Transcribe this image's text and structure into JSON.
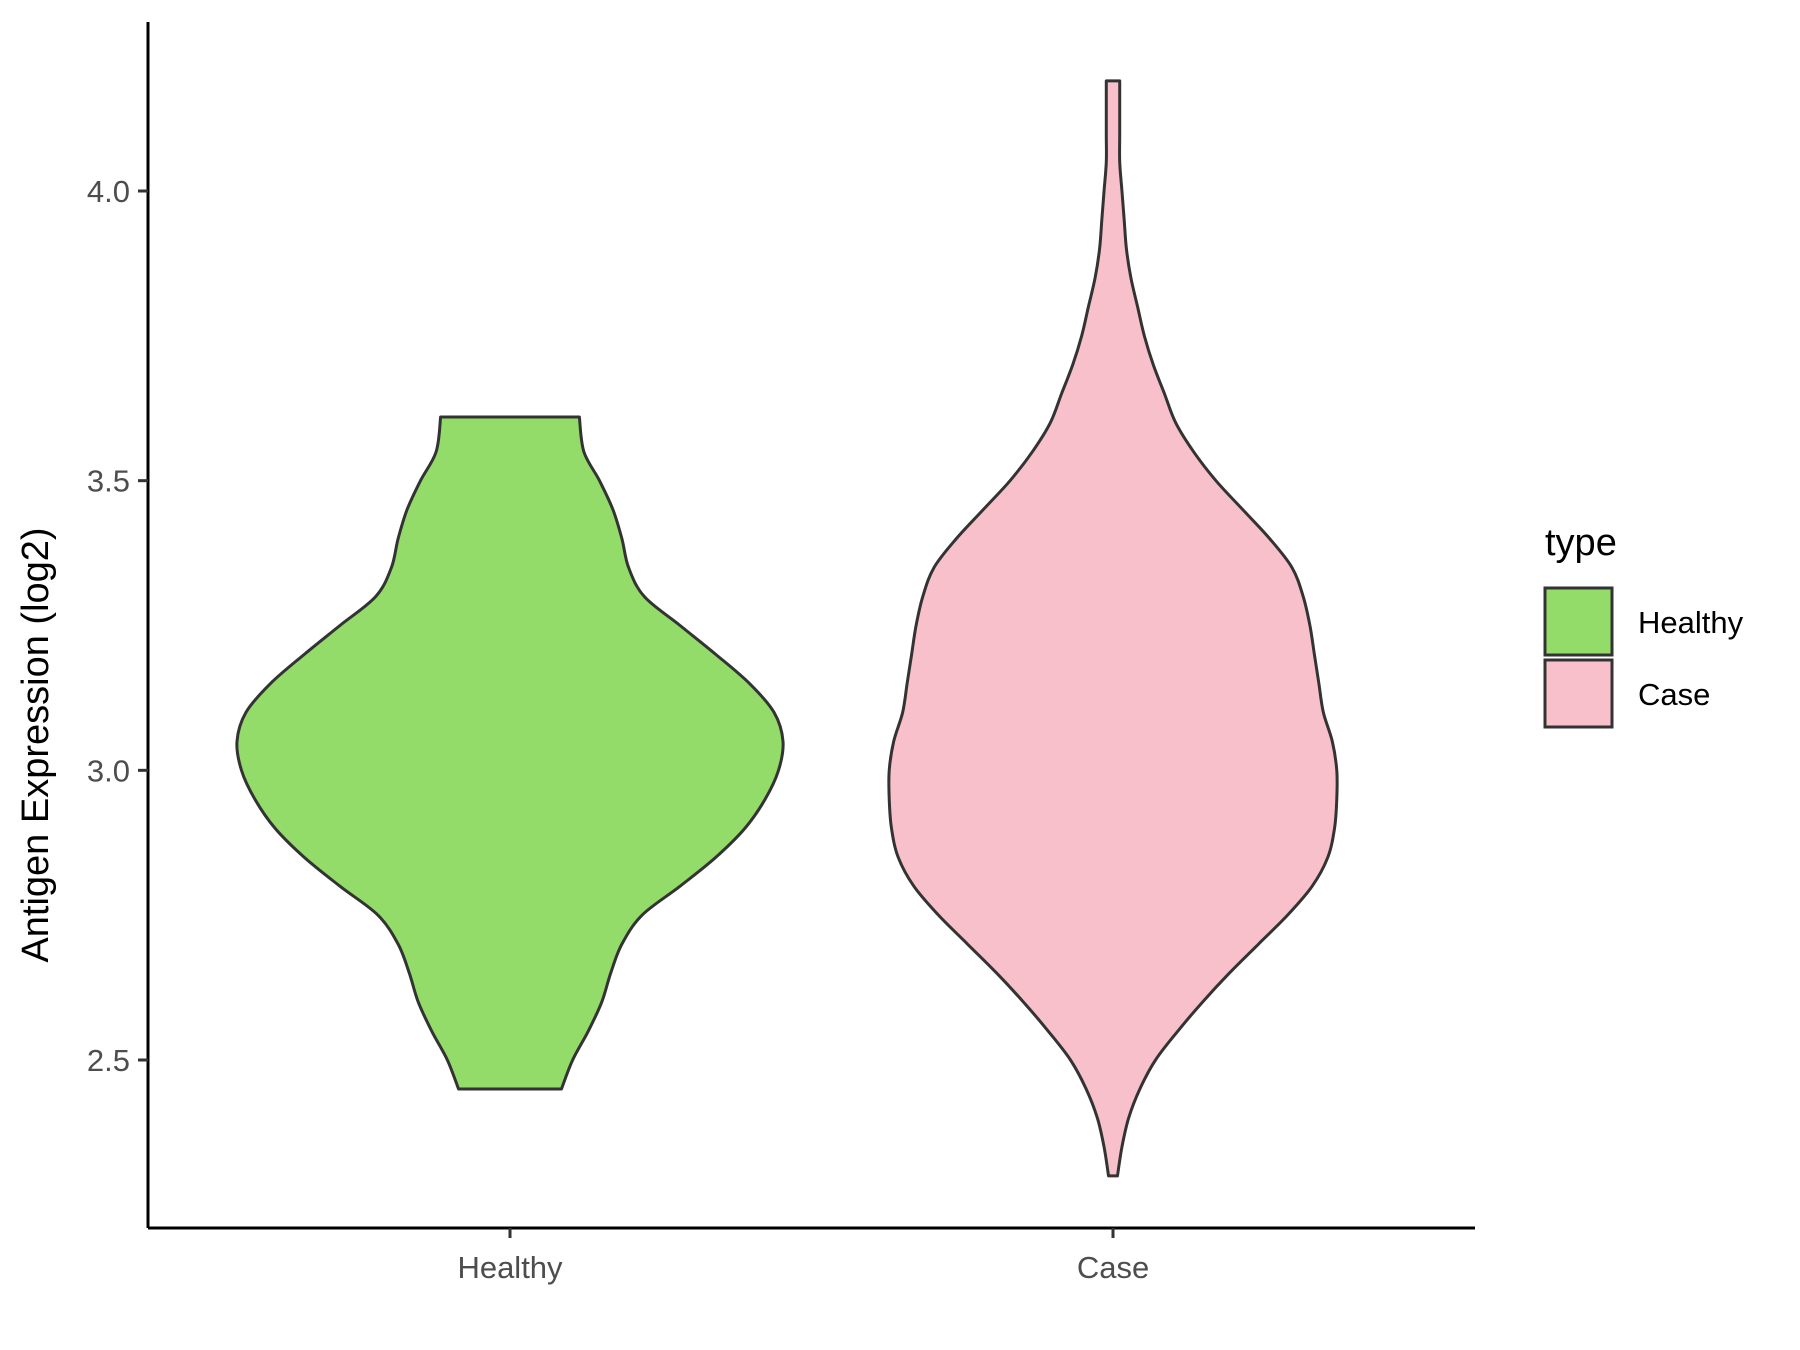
{
  "chart_data": {
    "type": "violin",
    "title": "",
    "xlabel": "",
    "ylabel": "Antigen Expression (log2)",
    "ylim": [
      2.21,
      4.29
    ],
    "y_ticks": [
      2.5,
      3.0,
      3.5,
      4.0
    ],
    "y_tick_labels": [
      "2.5",
      "3.0",
      "3.5",
      "4.0"
    ],
    "categories": [
      "Healthy",
      "Case"
    ],
    "grid": false,
    "legend": {
      "title": "type",
      "placement": "right",
      "entries": [
        "Healthy",
        "Case"
      ]
    },
    "colors": {
      "Healthy": "#93dc6a",
      "Case": "#f8c0cb",
      "outline": "#333333"
    },
    "series": [
      {
        "name": "Healthy",
        "min": 2.45,
        "max": 3.61,
        "density": [
          [
            2.45,
            0.23
          ],
          [
            2.5,
            0.28
          ],
          [
            2.55,
            0.35
          ],
          [
            2.6,
            0.41
          ],
          [
            2.65,
            0.45
          ],
          [
            2.7,
            0.5
          ],
          [
            2.75,
            0.59
          ],
          [
            2.8,
            0.76
          ],
          [
            2.85,
            0.92
          ],
          [
            2.9,
            1.05
          ],
          [
            2.95,
            1.14
          ],
          [
            3.0,
            1.2
          ],
          [
            3.05,
            1.22
          ],
          [
            3.1,
            1.18
          ],
          [
            3.15,
            1.07
          ],
          [
            3.2,
            0.92
          ],
          [
            3.25,
            0.76
          ],
          [
            3.3,
            0.6
          ],
          [
            3.35,
            0.53
          ],
          [
            3.4,
            0.5
          ],
          [
            3.45,
            0.46
          ],
          [
            3.5,
            0.4
          ],
          [
            3.55,
            0.33
          ],
          [
            3.61,
            0.31
          ]
        ]
      },
      {
        "name": "Case",
        "min": 2.3,
        "max": 4.19,
        "density": [
          [
            2.3,
            0.02
          ],
          [
            2.35,
            0.04
          ],
          [
            2.4,
            0.07
          ],
          [
            2.45,
            0.12
          ],
          [
            2.5,
            0.19
          ],
          [
            2.55,
            0.29
          ],
          [
            2.6,
            0.4
          ],
          [
            2.65,
            0.52
          ],
          [
            2.7,
            0.65
          ],
          [
            2.75,
            0.78
          ],
          [
            2.8,
            0.89
          ],
          [
            2.85,
            0.96
          ],
          [
            2.9,
            0.99
          ],
          [
            2.95,
            1.0
          ],
          [
            3.0,
            1.0
          ],
          [
            3.05,
            0.98
          ],
          [
            3.1,
            0.94
          ],
          [
            3.15,
            0.92
          ],
          [
            3.2,
            0.9
          ],
          [
            3.25,
            0.88
          ],
          [
            3.3,
            0.85
          ],
          [
            3.35,
            0.8
          ],
          [
            3.4,
            0.7
          ],
          [
            3.45,
            0.58
          ],
          [
            3.5,
            0.46
          ],
          [
            3.55,
            0.36
          ],
          [
            3.6,
            0.28
          ],
          [
            3.65,
            0.23
          ],
          [
            3.7,
            0.18
          ],
          [
            3.75,
            0.14
          ],
          [
            3.8,
            0.11
          ],
          [
            3.85,
            0.08
          ],
          [
            3.9,
            0.06
          ],
          [
            3.95,
            0.05
          ],
          [
            4.0,
            0.04
          ],
          [
            4.05,
            0.03
          ],
          [
            4.1,
            0.03
          ],
          [
            4.19,
            0.03
          ]
        ]
      }
    ]
  }
}
